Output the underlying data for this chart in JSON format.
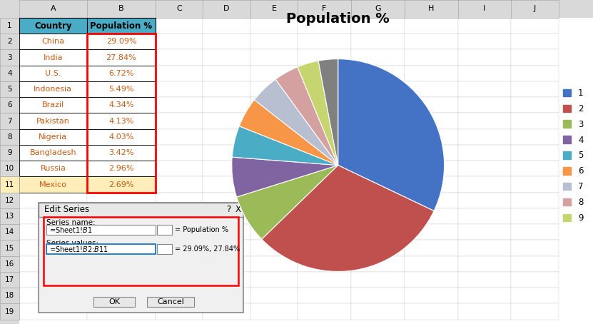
{
  "title": "Population %",
  "values": [
    29.09,
    27.84,
    6.72,
    5.49,
    4.34,
    4.13,
    4.03,
    3.42,
    2.96,
    2.69
  ],
  "countries": [
    "China",
    "India",
    "U.S.",
    "Indonesia",
    "Brazil",
    "Pakistan",
    "Nigeria",
    "Bangladesh",
    "Russia",
    "Mexico"
  ],
  "pct_labels": [
    "29.09%",
    "27.84%",
    "6.72%",
    "5.49%",
    "4.34%",
    "4.13%",
    "4.03%",
    "3.42%",
    "2.96%",
    "2.69%"
  ],
  "colors": [
    "#4472C4",
    "#C0504D",
    "#9BBB59",
    "#8064A2",
    "#4BACC6",
    "#F79646",
    "#B8BFD0",
    "#D4A0A0",
    "#C6D56F",
    "#808080"
  ],
  "legend_labels": [
    "1",
    "2",
    "3",
    "4",
    "5",
    "6",
    "7",
    "8",
    "9"
  ],
  "bg_color": "#FFFFFF",
  "excel_bg": "#D9D9D9",
  "header_bg": "#4BACC6",
  "grid_line": "#000000",
  "title_fontsize": 14,
  "title_fontweight": "bold",
  "row_colors": [
    "#FFFFFF",
    "#FFFFFF",
    "#FFFFFF",
    "#FFFFFF",
    "#FFFFFF",
    "#FFFFFF",
    "#FFFFFF",
    "#FFFFFF",
    "#FFFFFF",
    "#FFEEBA"
  ],
  "country_text_colors": [
    "#C55A11",
    "#C55A11",
    "#C55A11",
    "#C55A11",
    "#C55A11",
    "#C55A11",
    "#C55A11",
    "#C55A11",
    "#C55A11",
    "#C55A11"
  ]
}
